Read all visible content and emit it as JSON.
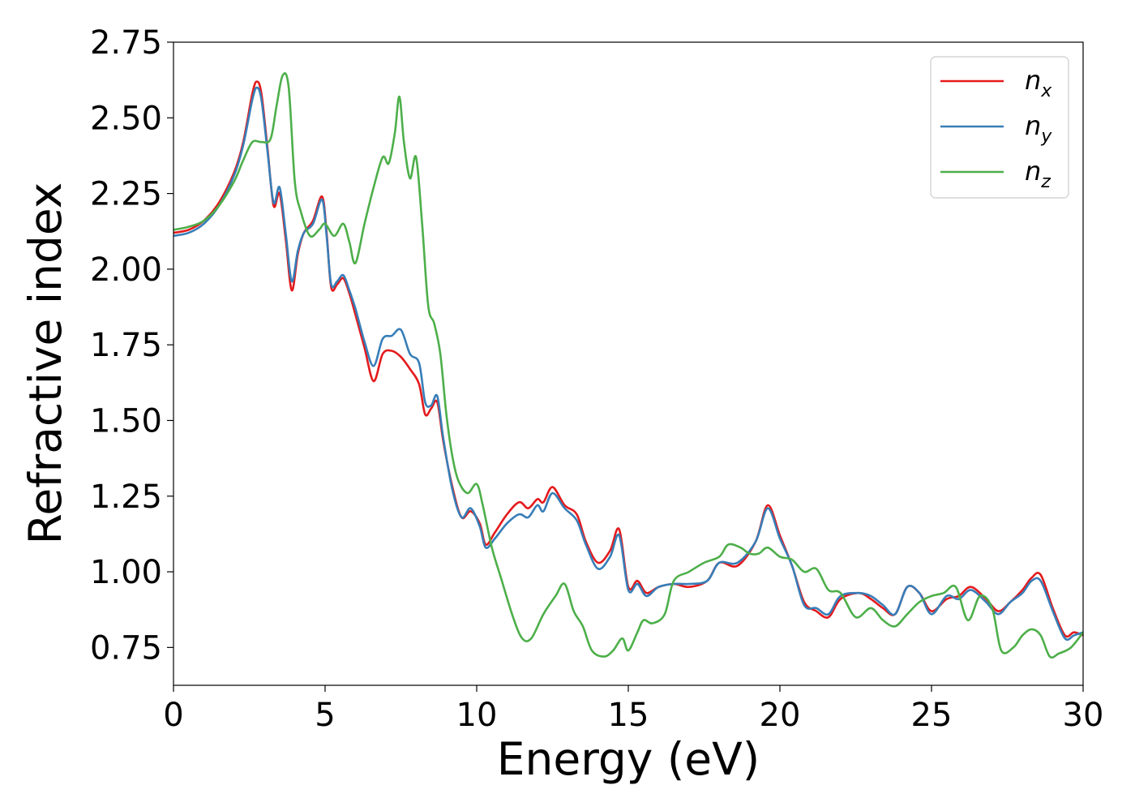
{
  "chart_data": {
    "type": "line",
    "xlabel": "Energy (eV)",
    "ylabel": "Refractive index",
    "xlim": [
      0,
      30
    ],
    "ylim": [
      0.625,
      2.75
    ],
    "xticks": [
      "0",
      "5",
      "10",
      "15",
      "20",
      "25",
      "30"
    ],
    "yticks": [
      "0.75",
      "1.00",
      "1.25",
      "1.50",
      "1.75",
      "2.00",
      "2.25",
      "2.50",
      "2.75"
    ],
    "grid": false,
    "legend_position": "top-right",
    "series": [
      {
        "name": "n",
        "subscript": "x",
        "color": "#e41a1c",
        "x": [
          0,
          0.5,
          1,
          1.5,
          2,
          2.3,
          2.6,
          2.75,
          2.9,
          3.1,
          3.3,
          3.5,
          3.7,
          3.9,
          4.1,
          4.3,
          4.6,
          4.9,
          5.05,
          5.2,
          5.4,
          5.6,
          5.8,
          6.0,
          6.3,
          6.6,
          6.9,
          7.2,
          7.5,
          7.8,
          8.1,
          8.3,
          8.5,
          8.7,
          8.9,
          9.2,
          9.5,
          9.8,
          10.1,
          10.3,
          10.6,
          11.0,
          11.4,
          11.7,
          12.0,
          12.2,
          12.5,
          12.9,
          13.3,
          13.6,
          14.0,
          14.4,
          14.7,
          15.0,
          15.3,
          15.6,
          16.0,
          16.5,
          17.0,
          17.6,
          18.0,
          18.6,
          19.2,
          19.6,
          20.0,
          20.4,
          20.8,
          21.2,
          21.6,
          22.0,
          22.6,
          23.0,
          23.4,
          23.8,
          24.2,
          24.6,
          25.0,
          25.5,
          25.9,
          26.3,
          26.8,
          27.2,
          27.6,
          28.0,
          28.3,
          28.6,
          29.0,
          29.4,
          29.7,
          30.0
        ],
        "y": [
          2.12,
          2.13,
          2.16,
          2.22,
          2.32,
          2.42,
          2.58,
          2.62,
          2.58,
          2.4,
          2.21,
          2.25,
          2.1,
          1.93,
          2.05,
          2.12,
          2.16,
          2.24,
          2.12,
          1.94,
          1.95,
          1.97,
          1.92,
          1.85,
          1.74,
          1.63,
          1.72,
          1.73,
          1.71,
          1.67,
          1.62,
          1.52,
          1.54,
          1.56,
          1.43,
          1.28,
          1.18,
          1.2,
          1.16,
          1.09,
          1.13,
          1.19,
          1.23,
          1.21,
          1.24,
          1.23,
          1.28,
          1.22,
          1.19,
          1.1,
          1.03,
          1.07,
          1.14,
          0.95,
          0.97,
          0.93,
          0.95,
          0.96,
          0.95,
          0.97,
          1.03,
          1.02,
          1.1,
          1.22,
          1.12,
          1.02,
          0.9,
          0.87,
          0.85,
          0.91,
          0.93,
          0.91,
          0.88,
          0.86,
          0.95,
          0.93,
          0.87,
          0.91,
          0.92,
          0.95,
          0.91,
          0.87,
          0.9,
          0.94,
          0.98,
          0.99,
          0.88,
          0.79,
          0.8,
          0.79
        ]
      },
      {
        "name": "n",
        "subscript": "y",
        "color": "#377eb8",
        "x": [
          0,
          0.5,
          1,
          1.5,
          2,
          2.3,
          2.6,
          2.75,
          2.9,
          3.1,
          3.3,
          3.5,
          3.7,
          3.9,
          4.1,
          4.3,
          4.6,
          4.9,
          5.05,
          5.2,
          5.4,
          5.6,
          5.8,
          6.0,
          6.3,
          6.6,
          6.9,
          7.2,
          7.5,
          7.8,
          8.1,
          8.3,
          8.5,
          8.7,
          8.9,
          9.2,
          9.5,
          9.8,
          10.1,
          10.3,
          10.6,
          11.0,
          11.4,
          11.7,
          12.0,
          12.2,
          12.5,
          12.9,
          13.3,
          13.6,
          14.0,
          14.4,
          14.7,
          15.0,
          15.3,
          15.6,
          16.0,
          16.5,
          17.0,
          17.6,
          18.0,
          18.6,
          19.2,
          19.6,
          20.0,
          20.4,
          20.8,
          21.2,
          21.6,
          22.0,
          22.6,
          23.0,
          23.4,
          23.8,
          24.2,
          24.6,
          25.0,
          25.5,
          25.9,
          26.3,
          26.8,
          27.2,
          27.6,
          28.0,
          28.3,
          28.6,
          29.0,
          29.4,
          29.7,
          30.0
        ],
        "y": [
          2.11,
          2.12,
          2.15,
          2.21,
          2.31,
          2.41,
          2.56,
          2.6,
          2.56,
          2.39,
          2.22,
          2.27,
          2.12,
          1.96,
          2.06,
          2.12,
          2.15,
          2.23,
          2.11,
          1.95,
          1.96,
          1.98,
          1.93,
          1.87,
          1.76,
          1.68,
          1.77,
          1.78,
          1.8,
          1.72,
          1.69,
          1.56,
          1.55,
          1.58,
          1.44,
          1.27,
          1.18,
          1.21,
          1.15,
          1.08,
          1.11,
          1.16,
          1.19,
          1.18,
          1.22,
          1.2,
          1.26,
          1.21,
          1.17,
          1.09,
          1.01,
          1.05,
          1.12,
          0.94,
          0.96,
          0.92,
          0.95,
          0.96,
          0.96,
          0.97,
          1.03,
          1.03,
          1.1,
          1.21,
          1.11,
          1.02,
          0.89,
          0.88,
          0.86,
          0.92,
          0.93,
          0.92,
          0.89,
          0.86,
          0.95,
          0.93,
          0.86,
          0.92,
          0.91,
          0.94,
          0.9,
          0.86,
          0.9,
          0.93,
          0.97,
          0.97,
          0.87,
          0.78,
          0.79,
          0.8
        ]
      },
      {
        "name": "n",
        "subscript": "z",
        "color": "#4daf4a",
        "x": [
          0,
          0.5,
          1,
          1.5,
          2,
          2.3,
          2.6,
          2.9,
          3.2,
          3.4,
          3.6,
          3.8,
          4.0,
          4.2,
          4.5,
          4.8,
          5.0,
          5.3,
          5.6,
          5.8,
          6.0,
          6.3,
          6.6,
          6.9,
          7.1,
          7.3,
          7.45,
          7.6,
          7.8,
          8.0,
          8.2,
          8.4,
          8.6,
          8.8,
          9.0,
          9.2,
          9.4,
          9.7,
          10.0,
          10.2,
          10.5,
          10.8,
          11.2,
          11.5,
          11.8,
          12.2,
          12.6,
          12.9,
          13.2,
          13.5,
          13.8,
          14.2,
          14.5,
          14.8,
          15.0,
          15.3,
          15.5,
          15.8,
          16.2,
          16.5,
          17.0,
          17.5,
          18.0,
          18.3,
          18.7,
          19.0,
          19.3,
          19.6,
          20.0,
          20.4,
          20.8,
          21.2,
          21.6,
          22.0,
          22.5,
          23.0,
          23.4,
          23.8,
          24.2,
          24.6,
          25.0,
          25.4,
          25.8,
          26.2,
          26.6,
          27.0,
          27.3,
          27.7,
          28.0,
          28.3,
          28.6,
          28.9,
          29.2,
          29.6,
          30.0
        ],
        "y": [
          2.13,
          2.14,
          2.16,
          2.21,
          2.29,
          2.36,
          2.42,
          2.42,
          2.43,
          2.54,
          2.64,
          2.6,
          2.29,
          2.19,
          2.11,
          2.13,
          2.15,
          2.11,
          2.15,
          2.09,
          2.02,
          2.15,
          2.27,
          2.37,
          2.35,
          2.45,
          2.57,
          2.42,
          2.3,
          2.37,
          2.15,
          1.88,
          1.82,
          1.72,
          1.52,
          1.38,
          1.3,
          1.26,
          1.29,
          1.22,
          1.08,
          0.98,
          0.85,
          0.78,
          0.78,
          0.86,
          0.92,
          0.96,
          0.87,
          0.82,
          0.74,
          0.72,
          0.74,
          0.78,
          0.74,
          0.8,
          0.84,
          0.83,
          0.86,
          0.97,
          1.0,
          1.03,
          1.05,
          1.09,
          1.08,
          1.06,
          1.06,
          1.08,
          1.05,
          1.04,
          1.0,
          1.01,
          0.94,
          0.93,
          0.85,
          0.88,
          0.84,
          0.82,
          0.86,
          0.9,
          0.92,
          0.93,
          0.95,
          0.84,
          0.92,
          0.88,
          0.74,
          0.75,
          0.79,
          0.81,
          0.79,
          0.72,
          0.73,
          0.75,
          0.8
        ]
      }
    ]
  }
}
